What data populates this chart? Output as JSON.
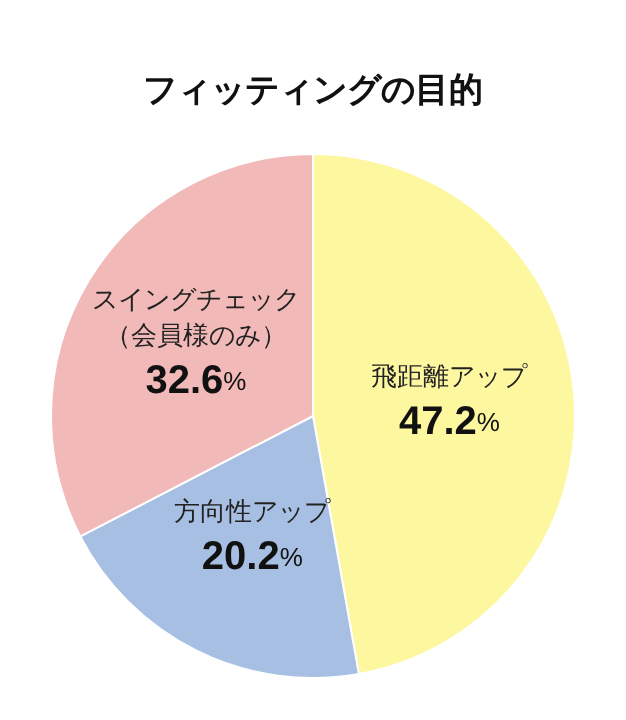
{
  "chart_data": {
    "type": "pie",
    "title": "フィッティングの目的",
    "categories": [
      "飛距離アップ",
      "方向性アップ",
      "スイングチェック（会員様のみ）"
    ],
    "values": [
      47.2,
      20.2,
      32.6
    ],
    "colors": [
      "#fdf7a0",
      "#a7bfe2",
      "#f2b9b9"
    ],
    "value_labels": [
      "47.2%",
      "20.2%",
      "32.6%"
    ],
    "legend": false
  }
}
